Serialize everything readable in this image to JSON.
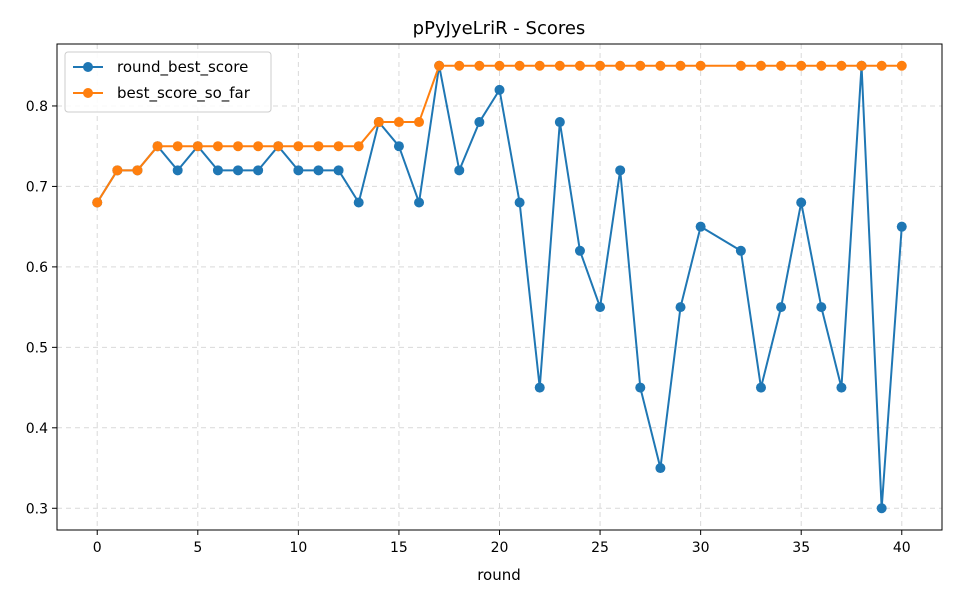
{
  "chart_data": {
    "type": "line",
    "title": "pPyJyeLriR - Scores",
    "xlabel": "round",
    "ylabel": "",
    "xlim": [
      -2,
      42
    ],
    "ylim": [
      0.273,
      0.877
    ],
    "xticks": [
      0,
      5,
      10,
      15,
      20,
      25,
      30,
      35,
      40
    ],
    "yticks": [
      0.3,
      0.4,
      0.5,
      0.6,
      0.7,
      0.8
    ],
    "grid": true,
    "legend_position": "top-left",
    "series": [
      {
        "name": "round_best_score",
        "color": "#1f77b4",
        "marker": "circle",
        "x": [
          0,
          1,
          2,
          3,
          4,
          5,
          6,
          7,
          8,
          9,
          10,
          11,
          12,
          13,
          14,
          15,
          16,
          17,
          18,
          19,
          20,
          21,
          22,
          23,
          24,
          25,
          26,
          27,
          28,
          29,
          30,
          32,
          33,
          34,
          35,
          36,
          37,
          38,
          39,
          40
        ],
        "values": [
          0.68,
          0.72,
          0.72,
          0.75,
          0.72,
          0.75,
          0.72,
          0.72,
          0.72,
          0.75,
          0.72,
          0.72,
          0.72,
          0.68,
          0.78,
          0.75,
          0.68,
          0.85,
          0.72,
          0.78,
          0.82,
          0.68,
          0.45,
          0.78,
          0.62,
          0.55,
          0.72,
          0.45,
          0.35,
          0.55,
          0.65,
          0.62,
          0.45,
          0.55,
          0.68,
          0.55,
          0.45,
          0.85,
          0.3,
          0.65
        ]
      },
      {
        "name": "best_score_so_far",
        "color": "#ff7f0e",
        "marker": "circle",
        "x": [
          0,
          1,
          2,
          3,
          4,
          5,
          6,
          7,
          8,
          9,
          10,
          11,
          12,
          13,
          14,
          15,
          16,
          17,
          18,
          19,
          20,
          21,
          22,
          23,
          24,
          25,
          26,
          27,
          28,
          29,
          30,
          32,
          33,
          34,
          35,
          36,
          37,
          38,
          39,
          40
        ],
        "values": [
          0.68,
          0.72,
          0.72,
          0.75,
          0.75,
          0.75,
          0.75,
          0.75,
          0.75,
          0.75,
          0.75,
          0.75,
          0.75,
          0.75,
          0.78,
          0.78,
          0.78,
          0.85,
          0.85,
          0.85,
          0.85,
          0.85,
          0.85,
          0.85,
          0.85,
          0.85,
          0.85,
          0.85,
          0.85,
          0.85,
          0.85,
          0.85,
          0.85,
          0.85,
          0.85,
          0.85,
          0.85,
          0.85,
          0.85,
          0.85
        ]
      }
    ]
  }
}
